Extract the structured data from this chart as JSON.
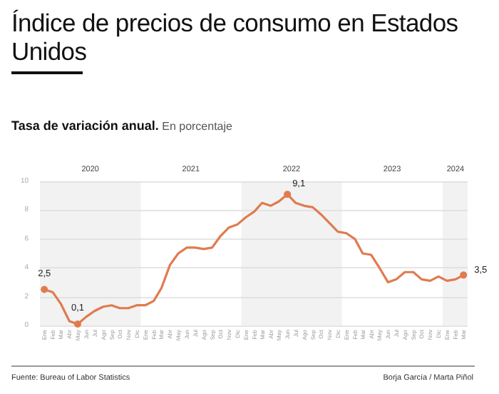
{
  "chart_data": {
    "type": "line",
    "title": "Índice de precios de consumo en Estados Unidos",
    "subtitle": "Tasa de variación anual. En porcentaje",
    "x": [
      "2020-01",
      "2020-02",
      "2020-03",
      "2020-04",
      "2020-05",
      "2020-06",
      "2020-07",
      "2020-08",
      "2020-09",
      "2020-10",
      "2020-11",
      "2020-12",
      "2021-01",
      "2021-02",
      "2021-03",
      "2021-04",
      "2021-05",
      "2021-06",
      "2021-07",
      "2021-08",
      "2021-09",
      "2021-10",
      "2021-11",
      "2021-12",
      "2022-01",
      "2022-02",
      "2022-03",
      "2022-04",
      "2022-05",
      "2022-06",
      "2022-07",
      "2022-08",
      "2022-09",
      "2022-10",
      "2022-11",
      "2022-12",
      "2023-01",
      "2023-02",
      "2023-03",
      "2023-04",
      "2023-05",
      "2023-06",
      "2023-07",
      "2023-08",
      "2023-09",
      "2023-10",
      "2023-11",
      "2023-12",
      "2024-01",
      "2024-02",
      "2024-03"
    ],
    "series": [
      {
        "color": "#e07b4f",
        "values": [
          2.5,
          2.3,
          1.5,
          0.3,
          0.1,
          0.6,
          1.0,
          1.3,
          1.4,
          1.2,
          1.2,
          1.4,
          1.4,
          1.7,
          2.6,
          4.2,
          5.0,
          5.4,
          5.4,
          5.3,
          5.4,
          6.2,
          6.8,
          7.0,
          7.5,
          7.9,
          8.5,
          8.3,
          8.6,
          9.1,
          8.5,
          8.3,
          8.2,
          7.7,
          7.1,
          6.5,
          6.4,
          6.0,
          5.0,
          4.9,
          4.0,
          3.0,
          3.2,
          3.7,
          3.7,
          3.2,
          3.1,
          3.4,
          3.1,
          3.2,
          3.5
        ],
        "value_labels": [
          "2,5",
          null,
          null,
          null,
          "0,1",
          null,
          null,
          null,
          null,
          null,
          null,
          null,
          null,
          null,
          null,
          null,
          null,
          null,
          null,
          null,
          null,
          null,
          null,
          null,
          null,
          null,
          null,
          null,
          null,
          "9,1",
          null,
          null,
          null,
          null,
          null,
          null,
          null,
          null,
          null,
          null,
          null,
          null,
          null,
          null,
          null,
          null,
          null,
          null,
          null,
          null,
          "3,5"
        ]
      }
    ],
    "xlim": [
      "2019-12-16",
      "2024-03-16"
    ],
    "xticks": [
      {
        "value": "2020-01",
        "label": "Ene"
      },
      {
        "value": "2020-02",
        "label": "Feb"
      },
      {
        "value": "2020-03",
        "label": "Mar"
      },
      {
        "value": "2020-04",
        "label": "Abr"
      },
      {
        "value": "2020-05",
        "label": "May"
      },
      {
        "value": "2020-06",
        "label": "Jun"
      },
      {
        "value": "2020-07",
        "label": "Jul"
      },
      {
        "value": "2020-08",
        "label": "Ago"
      },
      {
        "value": "2020-09",
        "label": "Sep"
      },
      {
        "value": "2020-10",
        "label": "Oct"
      },
      {
        "value": "2020-11",
        "label": "Nov"
      },
      {
        "value": "2020-12",
        "label": "Dic"
      },
      {
        "value": "2021-01",
        "label": "Ene"
      },
      {
        "value": "2021-02",
        "label": "Feb"
      },
      {
        "value": "2021-03",
        "label": "Mar"
      },
      {
        "value": "2021-04",
        "label": "Abr"
      },
      {
        "value": "2021-05",
        "label": "May"
      },
      {
        "value": "2021-06",
        "label": "Jun"
      },
      {
        "value": "2021-07",
        "label": "Jul"
      },
      {
        "value": "2021-08",
        "label": "Ago"
      },
      {
        "value": "2021-09",
        "label": "Sep"
      },
      {
        "value": "2021-10",
        "label": "Oct"
      },
      {
        "value": "2021-11",
        "label": "Nov"
      },
      {
        "value": "2021-12",
        "label": "Dic"
      },
      {
        "value": "2022-01",
        "label": "Ene"
      },
      {
        "value": "2022-02",
        "label": "Feb"
      },
      {
        "value": "2022-03",
        "label": "Mar"
      },
      {
        "value": "2022-04",
        "label": "Abr"
      },
      {
        "value": "2022-05",
        "label": "May"
      },
      {
        "value": "2022-06",
        "label": "Jun"
      },
      {
        "value": "2022-07",
        "label": "Jul"
      },
      {
        "value": "2022-08",
        "label": "Ago"
      },
      {
        "value": "2022-09",
        "label": "Sep"
      },
      {
        "value": "2022-10",
        "label": "Oct"
      },
      {
        "value": "2022-11",
        "label": "Nov"
      },
      {
        "value": "2022-12",
        "label": "Dic"
      },
      {
        "value": "2023-01",
        "label": "Ene"
      },
      {
        "value": "2023-02",
        "label": "Feb"
      },
      {
        "value": "2023-03",
        "label": "Mar"
      },
      {
        "value": "2023-04",
        "label": "Abr"
      },
      {
        "value": "2023-05",
        "label": "May"
      },
      {
        "value": "2023-06",
        "label": "Jun"
      },
      {
        "value": "2023-07",
        "label": "Jul"
      },
      {
        "value": "2023-08",
        "label": "Ago"
      },
      {
        "value": "2023-09",
        "label": "Sep"
      },
      {
        "value": "2023-10",
        "label": "Oct"
      },
      {
        "value": "2023-11",
        "label": "Nov"
      },
      {
        "value": "2023-12",
        "label": "Dic"
      },
      {
        "value": "2024-01",
        "label": "Ene"
      },
      {
        "value": "2024-02",
        "label": "Feb"
      },
      {
        "value": "2024-03",
        "label": "Mar"
      }
    ],
    "ylim": [
      0,
      10
    ],
    "yticks": [
      0,
      2,
      4,
      6,
      8,
      10
    ],
    "grid": "y",
    "x2lim": [
      "2019-12-16",
      "2024-03-16"
    ],
    "x2ticks": [
      {
        "value": "2020-06-16",
        "label": "2020"
      },
      {
        "value": "2021-06-16",
        "label": "2021"
      },
      {
        "value": "2022-06-16",
        "label": "2022"
      },
      {
        "value": "2023-06-16",
        "label": "2023"
      },
      {
        "value": "2024-02-01",
        "label": "2024"
      }
    ],
    "bands": [
      {
        "axis": "x",
        "from": "2019-12-16",
        "to": "2020-12-16",
        "color": "#f2f2f2"
      },
      {
        "axis": "x",
        "from": "2021-12-16",
        "to": "2022-12-16",
        "color": "#f2f2f2"
      },
      {
        "axis": "x",
        "from": "2023-12-16",
        "to": "2024-03-16",
        "color": "#f2f2f2"
      }
    ],
    "annotations": [
      "Fuente: Bureau of Labor Statistics",
      "Borja García / Marta Piñol"
    ]
  }
}
